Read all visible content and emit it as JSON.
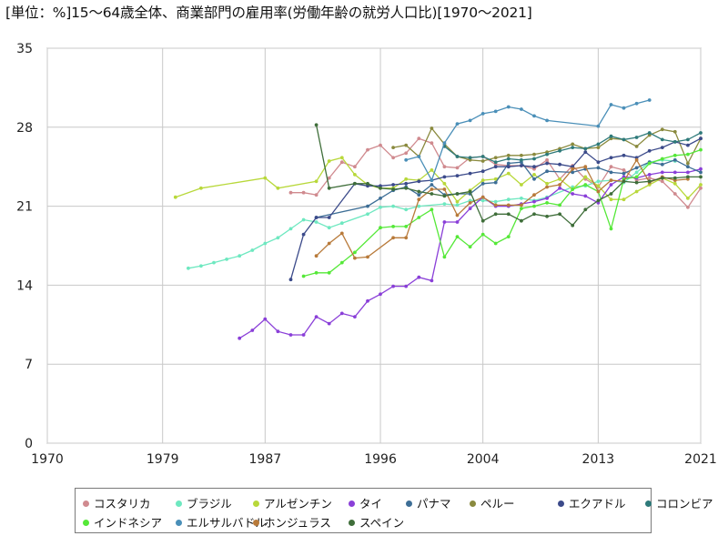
{
  "chart_data": {
    "type": "line",
    "title": "[単位：%]15〜64歳全体、商業部門の雇用率(労働年齢の就労人口比)[1970〜2021]",
    "xlabel": "",
    "ylabel": "",
    "xlim": [
      1970,
      2021
    ],
    "ylim": [
      0,
      35
    ],
    "xticks": [
      "1970",
      "1979",
      "1987",
      "1996",
      "2004",
      "2013",
      "2021"
    ],
    "yticks": [
      "0",
      "7",
      "14",
      "21",
      "28",
      "35"
    ],
    "grid": true,
    "legend_position": "bottom",
    "series": [
      {
        "name": "コスタリカ",
        "color": "#d08a8f",
        "x": [
          1989,
          1990,
          1991,
          1992,
          1993,
          1994,
          1995,
          1996,
          1997,
          1998,
          1999,
          2000,
          2001,
          2002,
          2003,
          2004,
          2005,
          2006,
          2007,
          2008,
          2009,
          2010,
          2011,
          2012,
          2013,
          2014,
          2015,
          2016,
          2017,
          2018,
          2019,
          2020,
          2021
        ],
        "y": [
          22.2,
          22.2,
          22.0,
          23.5,
          24.9,
          24.5,
          26.0,
          26.4,
          25.3,
          25.7,
          27.0,
          26.6,
          24.5,
          24.4,
          25.3,
          25.4,
          24.7,
          24.6,
          24.6,
          24.3,
          25.1,
          23.4,
          24.6,
          23.4,
          22.7,
          24.5,
          24.2,
          23.3,
          23.5,
          23.2,
          22.1,
          20.9,
          22.6
        ]
      },
      {
        "name": "ブラジル",
        "color": "#6ee8c0",
        "x": [
          1981,
          1982,
          1983,
          1984,
          1985,
          1986,
          1987,
          1988,
          1989,
          1990,
          1991,
          1992,
          1993,
          1995,
          1996,
          1997,
          1998,
          1999,
          2001,
          2002,
          2003,
          2004,
          2005,
          2006,
          2007,
          2008,
          2009,
          2011,
          2012,
          2013,
          2014,
          2015,
          2016,
          2017,
          2018,
          2019
        ],
        "y": [
          15.5,
          15.7,
          16.0,
          16.3,
          16.6,
          17.1,
          17.7,
          18.2,
          19.0,
          19.8,
          19.6,
          19.1,
          19.5,
          20.3,
          20.9,
          21.0,
          20.7,
          21.0,
          21.2,
          21.1,
          21.5,
          21.5,
          21.4,
          21.6,
          21.7,
          21.5,
          21.8,
          22.7,
          22.8,
          23.2,
          23.3,
          23.1,
          24.0,
          24.9,
          25.1,
          25.0
        ]
      },
      {
        "name": "アルゼンチン",
        "color": "#b8d83a",
        "x": [
          1980,
          1982,
          1987,
          1988,
          1991,
          1992,
          1993,
          1994,
          1995,
          1996,
          1997,
          1998,
          1999,
          2000,
          2001,
          2002,
          2003,
          2004,
          2005,
          2006,
          2007,
          2008,
          2009,
          2010,
          2011,
          2012,
          2013,
          2014,
          2015,
          2016,
          2017,
          2018,
          2019,
          2020,
          2021
        ],
        "y": [
          21.8,
          22.6,
          23.5,
          22.6,
          23.2,
          25.0,
          25.3,
          23.8,
          22.9,
          22.6,
          22.6,
          23.4,
          23.3,
          24.2,
          23.0,
          21.4,
          22.4,
          23.3,
          23.4,
          23.9,
          22.9,
          23.8,
          23.0,
          23.4,
          22.5,
          23.6,
          22.8,
          21.6,
          21.6,
          22.3,
          22.9,
          23.5,
          23.0,
          21.7,
          22.9
        ]
      },
      {
        "name": "タイ",
        "color": "#8a3fd8",
        "x": [
          1985,
          1986,
          1987,
          1988,
          1989,
          1990,
          1991,
          1992,
          1993,
          1994,
          1995,
          1996,
          1997,
          1998,
          1999,
          2000,
          2001,
          2002,
          2003,
          2004,
          2005,
          2006,
          2007,
          2008,
          2009,
          2010,
          2011,
          2012,
          2013,
          2014,
          2015,
          2016,
          2017,
          2018,
          2019,
          2020,
          2021
        ],
        "y": [
          9.3,
          10.0,
          11.0,
          9.9,
          9.6,
          9.6,
          11.2,
          10.6,
          11.5,
          11.2,
          12.6,
          13.2,
          13.9,
          13.9,
          14.7,
          14.4,
          19.6,
          19.6,
          20.8,
          21.8,
          21.0,
          21.0,
          21.2,
          21.4,
          21.7,
          22.6,
          22.1,
          21.9,
          21.3,
          22.9,
          23.6,
          23.5,
          23.8,
          24.0,
          24.0,
          24.0,
          24.3
        ]
      },
      {
        "name": "パナマ",
        "color": "#3d6e96",
        "x": [
          1991,
          1995,
          1996,
          1997,
          1998,
          1999,
          2000,
          2001,
          2002,
          2003,
          2004,
          2005,
          2006,
          2007,
          2008,
          2009,
          2011,
          2012,
          2013,
          2014,
          2015,
          2016,
          2017,
          2018,
          2019,
          2020,
          2021
        ],
        "y": [
          20.0,
          21.0,
          21.7,
          22.4,
          22.7,
          22.0,
          22.9,
          22.0,
          22.1,
          22.1,
          23.0,
          23.1,
          24.8,
          24.9,
          23.4,
          24.1,
          24.0,
          24.3,
          24.4,
          24.0,
          23.9,
          24.4,
          24.9,
          24.7,
          25.1,
          24.5,
          24.0
        ]
      },
      {
        "name": "ペルー",
        "color": "#8a8a3e",
        "x": [
          1997,
          1998,
          1999,
          2000,
          2001,
          2002,
          2003,
          2004,
          2005,
          2006,
          2007,
          2008,
          2009,
          2010,
          2011,
          2012,
          2013,
          2014,
          2015,
          2016,
          2017,
          2018,
          2019,
          2020,
          2021
        ],
        "y": [
          26.2,
          26.4,
          25.4,
          27.9,
          26.5,
          25.4,
          25.1,
          25.0,
          25.3,
          25.5,
          25.5,
          25.6,
          25.8,
          26.1,
          26.5,
          26.1,
          26.2,
          27.0,
          26.9,
          26.3,
          27.3,
          27.8,
          27.6,
          24.8,
          27.0
        ]
      },
      {
        "name": "エクアドル",
        "color": "#3b4a8a",
        "x": [
          1989,
          1990,
          1991,
          1992,
          1994,
          1995,
          1996,
          1997,
          1998,
          1999,
          2000,
          2001,
          2002,
          2003,
          2004,
          2005,
          2006,
          2007,
          2008,
          2009,
          2010,
          2011,
          2012,
          2013,
          2014,
          2015,
          2016,
          2017,
          2018,
          2019,
          2020,
          2021
        ],
        "y": [
          14.5,
          18.5,
          20.0,
          20.0,
          23.0,
          22.8,
          22.8,
          22.9,
          23.0,
          23.2,
          23.3,
          23.6,
          23.7,
          23.9,
          24.1,
          24.5,
          24.5,
          24.6,
          24.5,
          24.8,
          24.7,
          24.5,
          25.8,
          24.9,
          25.3,
          25.5,
          25.3,
          25.9,
          26.2,
          26.7,
          26.4,
          27.0
        ]
      },
      {
        "name": "コロンビア",
        "color": "#2e7a7a",
        "x": [
          2001,
          2002,
          2003,
          2004,
          2005,
          2006,
          2007,
          2008,
          2009,
          2010,
          2011,
          2012,
          2013,
          2014,
          2015,
          2016,
          2017,
          2018,
          2019,
          2020,
          2021
        ],
        "y": [
          26.3,
          25.4,
          25.3,
          25.4,
          24.9,
          25.2,
          25.1,
          25.2,
          25.6,
          25.9,
          26.2,
          26.1,
          26.5,
          27.2,
          26.9,
          27.1,
          27.5,
          26.9,
          26.7,
          26.9,
          27.5
        ]
      },
      {
        "name": "インドネシア",
        "color": "#55e838",
        "x": [
          1990,
          1991,
          1992,
          1993,
          1994,
          1996,
          1997,
          1998,
          1999,
          2000,
          2001,
          2002,
          2003,
          2004,
          2005,
          2006,
          2007,
          2008,
          2009,
          2010,
          2011,
          2012,
          2013,
          2014,
          2015,
          2016,
          2017,
          2018,
          2019,
          2020,
          2021
        ],
        "y": [
          14.8,
          15.1,
          15.1,
          16.0,
          16.9,
          19.1,
          19.2,
          19.2,
          20.0,
          20.7,
          16.5,
          18.3,
          17.4,
          18.5,
          17.7,
          18.3,
          20.8,
          21.0,
          21.3,
          21.1,
          22.5,
          22.9,
          22.3,
          19.0,
          23.4,
          23.6,
          24.8,
          25.2,
          25.5,
          25.6,
          26.0
        ]
      },
      {
        "name": "エルサルバドル",
        "color": "#4a8fb8",
        "x": [
          1998,
          1999,
          2000,
          2001,
          2002,
          2003,
          2004,
          2005,
          2006,
          2007,
          2008,
          2009,
          2013,
          2014,
          2015,
          2016,
          2017
        ],
        "y": [
          25.1,
          25.4,
          23.3,
          26.6,
          28.3,
          28.6,
          29.2,
          29.4,
          29.8,
          29.6,
          29.0,
          28.6,
          28.1,
          30.0,
          29.7,
          30.1,
          30.4
        ]
      },
      {
        "name": "ホンジュラス",
        "color": "#b87a3a",
        "x": [
          1991,
          1992,
          1993,
          1994,
          1995,
          1997,
          1998,
          1999,
          2000,
          2001,
          2002,
          2003,
          2004,
          2005,
          2006,
          2007,
          2008,
          2009,
          2010,
          2011,
          2012,
          2013,
          2014,
          2015,
          2016,
          2017,
          2018,
          2019,
          2020
        ],
        "y": [
          16.6,
          17.7,
          18.6,
          16.4,
          16.5,
          18.2,
          18.2,
          21.6,
          22.5,
          22.5,
          20.2,
          21.3,
          21.8,
          21.1,
          21.1,
          21.1,
          22.0,
          22.7,
          22.9,
          24.3,
          24.5,
          22.3,
          23.3,
          23.2,
          25.1,
          23.1,
          23.6,
          23.3,
          23.4
        ]
      },
      {
        "name": "スペイン",
        "color": "#3f6e3a",
        "x": [
          1991,
          1992,
          1994,
          1995,
          1996,
          1997,
          1998,
          1999,
          2000,
          2001,
          2002,
          2003,
          2004,
          2005,
          2006,
          2007,
          2008,
          2009,
          2010,
          2011,
          2012,
          2013,
          2014,
          2015,
          2016,
          2017,
          2018,
          2019,
          2020,
          2021
        ],
        "y": [
          28.2,
          22.6,
          23.0,
          23.0,
          22.6,
          22.5,
          22.6,
          22.3,
          22.1,
          21.9,
          22.1,
          22.3,
          19.7,
          20.3,
          20.3,
          19.7,
          20.3,
          20.1,
          20.3,
          19.3,
          20.7,
          21.5,
          22.1,
          23.2,
          23.1,
          23.2,
          23.5,
          23.5,
          23.6,
          23.6
        ]
      }
    ]
  }
}
